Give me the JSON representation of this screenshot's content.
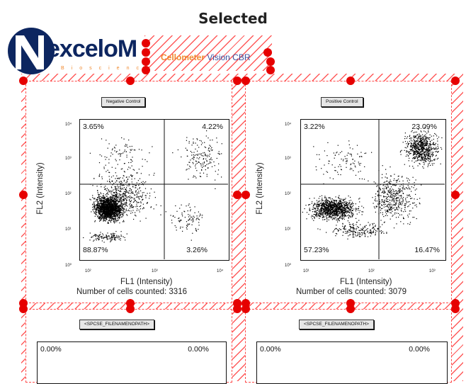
{
  "title": "Selected",
  "logo": {
    "brand_word": "exceloM",
    "brand_display": "exceloM",
    "subline": "Bioscience",
    "product_name": "Cellometer",
    "product_suffix": " Vision CBR"
  },
  "panels": [
    {
      "label": "Negative Control",
      "quadrants": {
        "top_left": "3.65%",
        "top_right": "4.22%",
        "bottom_left": "88.87%",
        "bottom_right": "3.26%"
      },
      "x_ticks": [
        "10²",
        "10³",
        "10⁴"
      ],
      "y_ticks": [
        "10⁴",
        "10³",
        "10²",
        "10¹",
        "10⁰"
      ],
      "x_axis": "FL1 (Intensity)",
      "y_axis": "FL2 (Intensity)",
      "cells_counted": "Number of cells counted: 3316"
    },
    {
      "label": "Positive Control",
      "quadrants": {
        "top_left": "3.22%",
        "top_right": "23.09%",
        "bottom_left": "57.23%",
        "bottom_right": "16.47%"
      },
      "x_ticks": [
        "10¹",
        "10²",
        "10³"
      ],
      "y_ticks": [
        "10⁴",
        "10³",
        "10²",
        "10¹",
        "10⁰"
      ],
      "x_axis": "FL1 (Intensity)",
      "y_axis": "FL2 (Intensity)",
      "cells_counted": "Number of cells counted: 3079"
    }
  ],
  "lower_panels": [
    {
      "label": "<SPCSE_FILENAMENOPATH>",
      "top_left": "0.00%",
      "top_right": "0.00%"
    },
    {
      "label": "<SPCSE_FILENAMENOPATH>",
      "top_left": "0.00%",
      "top_right": "0.00%"
    }
  ],
  "colors": {
    "selection": "#e60000",
    "hatch": "#ff5a5a",
    "logo_navy": "#0d2660",
    "logo_orange": "#f08a30"
  }
}
